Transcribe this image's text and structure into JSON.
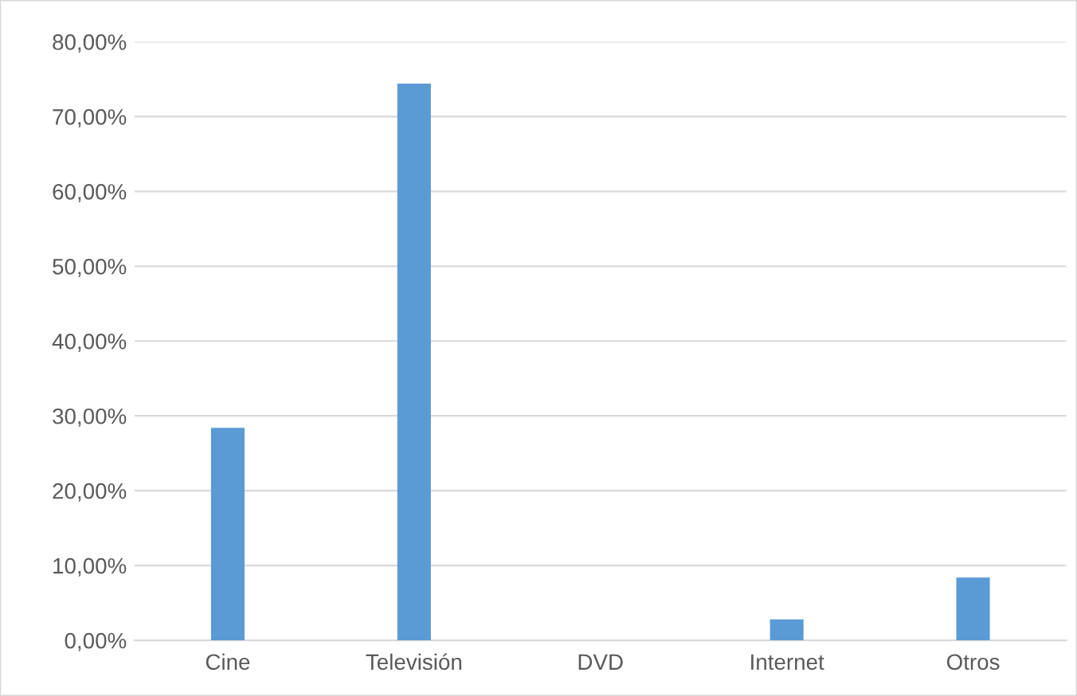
{
  "chart_data": {
    "type": "bar",
    "categories": [
      "Cine",
      "Televisión",
      "DVD",
      "Internet",
      "Otros"
    ],
    "values": [
      28.4,
      74.4,
      0,
      2.8,
      8.4
    ],
    "color": "#5b9bd5",
    "ylim": [
      0,
      80
    ],
    "yticks": [
      {
        "value": 0,
        "label": "0,00%"
      },
      {
        "value": 10,
        "label": "10,00%"
      },
      {
        "value": 20,
        "label": "20,00%"
      },
      {
        "value": 30,
        "label": "30,00%"
      },
      {
        "value": 40,
        "label": "40,00%"
      },
      {
        "value": 50,
        "label": "50,00%"
      },
      {
        "value": 60,
        "label": "60,00%"
      },
      {
        "value": 70,
        "label": "70,00%"
      },
      {
        "value": 80,
        "label": "80,00%"
      }
    ],
    "grid": "y"
  }
}
